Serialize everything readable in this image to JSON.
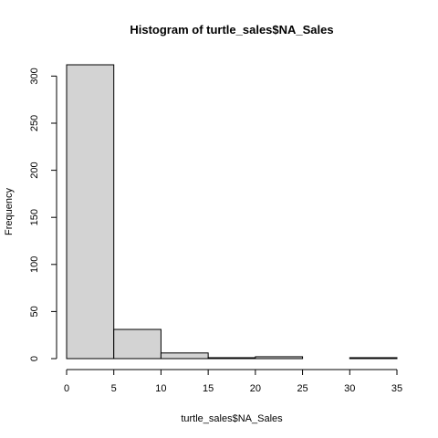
{
  "chart_data": {
    "type": "bar",
    "title": "Histogram of turtle_sales$NA_Sales",
    "xlabel": "turtle_sales$NA_Sales",
    "ylabel": "Frequency",
    "bins": [
      {
        "from": 0,
        "to": 5,
        "count": 312
      },
      {
        "from": 5,
        "to": 10,
        "count": 31
      },
      {
        "from": 10,
        "to": 15,
        "count": 6
      },
      {
        "from": 15,
        "to": 20,
        "count": 1
      },
      {
        "from": 20,
        "to": 25,
        "count": 2
      },
      {
        "from": 25,
        "to": 30,
        "count": 0
      },
      {
        "from": 30,
        "to": 35,
        "count": 1
      }
    ],
    "xlim": [
      0,
      35
    ],
    "ylim": [
      0,
      312
    ],
    "xticks": [
      0,
      5,
      10,
      15,
      20,
      25,
      30,
      35
    ],
    "yticks": [
      0,
      50,
      100,
      150,
      200,
      250,
      300
    ],
    "bar_fill": "#d3d3d3",
    "bar_stroke": "#000000",
    "grid": false,
    "legend": "none"
  }
}
